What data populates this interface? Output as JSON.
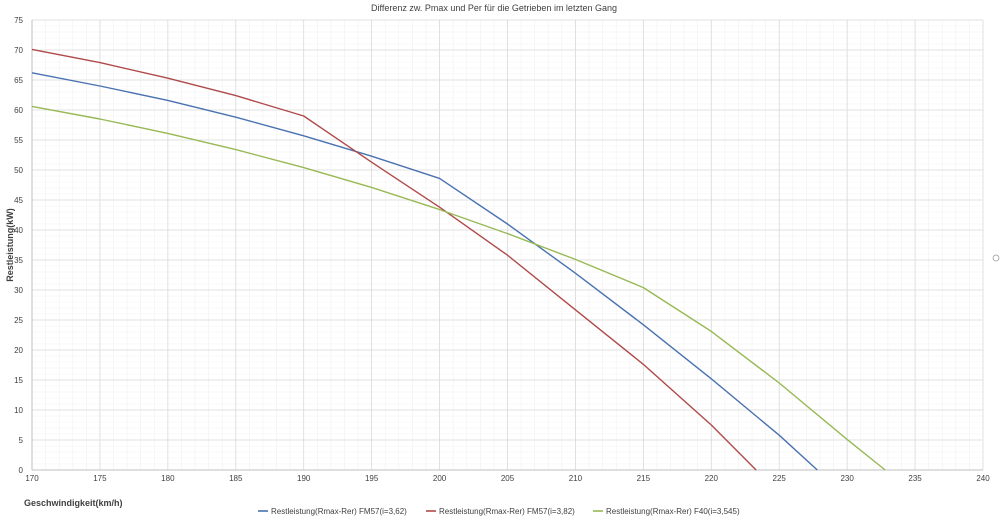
{
  "chart_data": {
    "type": "line",
    "title": "Differenz zw. Pmax und Per für die Getrieben im letzten Gang",
    "xlabel": "Geschwindigkeit(km/h)",
    "ylabel": "Restleistung(kW)",
    "xlim": [
      170,
      240
    ],
    "ylim": [
      0,
      75
    ],
    "xticks": [
      170,
      175,
      180,
      185,
      190,
      195,
      200,
      205,
      210,
      215,
      220,
      225,
      230,
      235,
      240
    ],
    "yticks": [
      0,
      5,
      10,
      15,
      20,
      25,
      30,
      35,
      40,
      45,
      50,
      55,
      60,
      65,
      70,
      75
    ],
    "grid": true,
    "legend_position": "bottom",
    "series": [
      {
        "name": "Restleistung(Rmax-Rer) FM57(i=3,62)",
        "color": "#4a72b0",
        "x": [
          170,
          175,
          180,
          185,
          190,
          195,
          200,
          205,
          210,
          215,
          220,
          225,
          227.8
        ],
        "y": [
          66.2,
          64.0,
          61.6,
          58.8,
          55.7,
          52.3,
          48.6,
          41.0,
          32.8,
          24.2,
          15.2,
          5.8,
          0
        ]
      },
      {
        "name": "Restleistung(Rmax-Rer) FM57(i=3,82)",
        "color": "#b04a4a",
        "x": [
          170,
          175,
          180,
          185,
          190,
          195,
          200,
          205,
          210,
          215,
          220,
          223.3
        ],
        "y": [
          70.1,
          67.9,
          65.3,
          62.4,
          59.0,
          51.3,
          43.8,
          35.8,
          26.7,
          17.6,
          7.5,
          0
        ]
      },
      {
        "name": "Restleistung(Rmax-Rer) F40(i=3,545)",
        "color": "#98b954",
        "x": [
          170,
          175,
          180,
          185,
          190,
          195,
          200,
          205,
          210,
          215,
          220,
          225,
          230,
          232.8
        ],
        "y": [
          60.6,
          58.5,
          56.1,
          53.4,
          50.4,
          47.1,
          43.4,
          39.4,
          35.1,
          30.4,
          23.1,
          14.5,
          5.1,
          0
        ]
      }
    ]
  }
}
